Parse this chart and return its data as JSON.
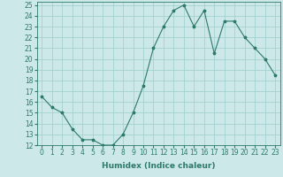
{
  "x": [
    0,
    1,
    2,
    3,
    4,
    5,
    6,
    7,
    8,
    9,
    10,
    11,
    12,
    13,
    14,
    15,
    16,
    17,
    18,
    19,
    20,
    21,
    22,
    23
  ],
  "y": [
    16.5,
    15.5,
    15.0,
    13.5,
    12.5,
    12.5,
    12.0,
    12.0,
    13.0,
    15.0,
    17.5,
    21.0,
    23.0,
    24.5,
    25.0,
    23.0,
    24.5,
    20.5,
    23.5,
    23.5,
    22.0,
    21.0,
    20.0,
    18.5
  ],
  "xlabel": "Humidex (Indice chaleur)",
  "bg_color": "#cce8e8",
  "line_color": "#2d7a6a",
  "marker": "*",
  "xlim": [
    -0.5,
    23.5
  ],
  "ylim": [
    12,
    25.3
  ],
  "yticks": [
    12,
    13,
    14,
    15,
    16,
    17,
    18,
    19,
    20,
    21,
    22,
    23,
    24,
    25
  ],
  "xticks": [
    0,
    1,
    2,
    3,
    4,
    5,
    6,
    7,
    8,
    9,
    10,
    11,
    12,
    13,
    14,
    15,
    16,
    17,
    18,
    19,
    20,
    21,
    22,
    23
  ],
  "grid_color": "#9ecece",
  "tick_fontsize": 5.5,
  "label_fontsize": 6.5
}
